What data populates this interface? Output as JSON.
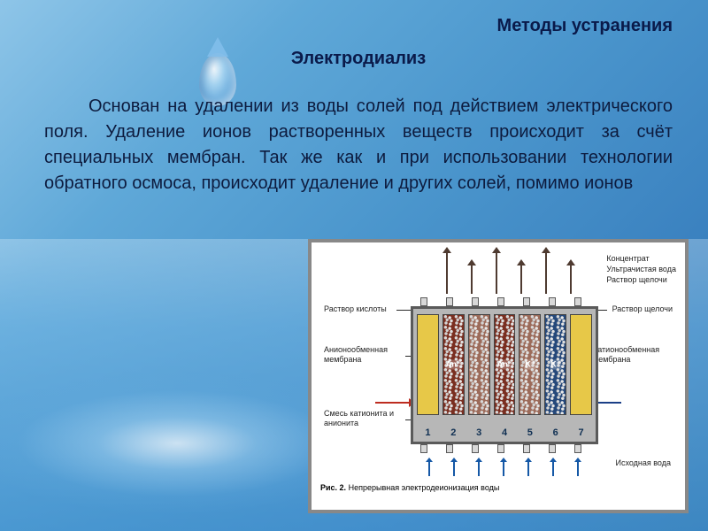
{
  "titles": {
    "main": "Методы устранения",
    "sub": "Электродиализ"
  },
  "paragraph": "Основан на удалении из воды солей под действием электрического поля. Удаление ионов растворенных веществ происходит за счёт специальных мембран. Так же как и при использовании технологии обратного осмоса, происходит удаление и других солей, помимо ионов",
  "typography": {
    "title_fontsize": 20,
    "body_fontsize": 20,
    "title_color": "#0a1a4a",
    "body_color": "#0d1b3e",
    "fig_label_fontsize": 9,
    "caption_fontsize": 9
  },
  "background": {
    "gradient_from": "#8ec5e8",
    "gradient_to": "#2e6fa8"
  },
  "figure": {
    "caption_prefix": "Рис. 2.",
    "caption_text": "Непрерывная электродеионизация воды",
    "top_labels": {
      "l1": "Концентрат",
      "l2": "Ультрачистая вода",
      "l3": "Раствор щелочи"
    },
    "left_labels": {
      "acid": "Раствор кислоты",
      "anion_membrane": "Анионообменная мембрана",
      "mix": "Смесь катионита и анионита"
    },
    "right_labels": {
      "cation_membrane": "Катионообменная мембрана"
    },
    "membrane_tags": {
      "an": "Аn⁻",
      "k": "K⁺"
    },
    "bottom_label": "Исходная вода",
    "columns": [
      {
        "num": "1",
        "bg": "#e7c848",
        "type": "plain"
      },
      {
        "num": "2",
        "bg": "#7a2e20",
        "type": "grainy",
        "tag": "an"
      },
      {
        "num": "3",
        "bg": "#9c6b5a",
        "type": "grainy"
      },
      {
        "num": "4",
        "bg": "#7a2e20",
        "type": "grainy",
        "tag": "an"
      },
      {
        "num": "5",
        "bg": "#9c6b5a",
        "type": "grainy",
        "tag": "k"
      },
      {
        "num": "6",
        "bg": "#25487a",
        "type": "grainy",
        "tag": "k"
      },
      {
        "num": "7",
        "bg": "#e7c848",
        "type": "plain"
      }
    ],
    "arrow_colors": {
      "top": "#4f3b31",
      "bottom": "#1558a6",
      "red": "#bd2c20",
      "blue": "#1b3f87"
    },
    "border_color": "#888888"
  }
}
